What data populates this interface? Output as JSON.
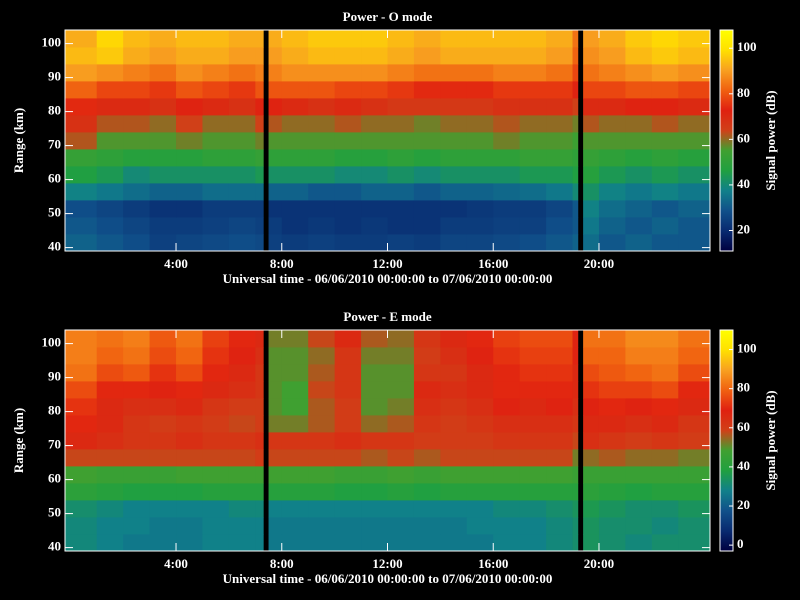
{
  "chart_data": [
    {
      "type": "heatmap",
      "title": "Power - O mode",
      "xlabel": "Universal time - 06/06/2010 00:00:00 to 07/06/2010 00:00:00",
      "ylabel": "Range (km)",
      "colorbar_label": "Signal power (dB)",
      "xbins": [
        -0.2,
        1,
        2,
        3,
        4,
        5,
        6,
        7,
        7.3,
        7.5,
        8,
        9,
        10,
        11,
        12,
        13,
        14,
        15,
        16,
        17,
        18,
        19,
        19.2,
        19.4,
        20,
        21,
        22,
        23,
        24.2
      ],
      "ybins": [
        39,
        44,
        49,
        54,
        59,
        64,
        69,
        74,
        79,
        84,
        89,
        94,
        99,
        104
      ],
      "xlim": [
        -0.2,
        24.2
      ],
      "ylim": [
        39,
        104
      ],
      "xticks": [
        {
          "value": 4,
          "label": "4:00"
        },
        {
          "value": 8,
          "label": "8:00"
        },
        {
          "value": 12,
          "label": "12:00"
        },
        {
          "value": 16,
          "label": "16:00"
        },
        {
          "value": 20,
          "label": "20:00"
        }
      ],
      "yticks": [
        40,
        50,
        60,
        70,
        80,
        90,
        100
      ],
      "clim": [
        11,
        108
      ],
      "cticks": [
        20,
        40,
        60,
        80,
        100
      ],
      "colormap": [
        "#000040",
        "#082a70",
        "#10508a",
        "#10808a",
        "#20a040",
        "#40a030",
        "#d04018",
        "#e02010",
        "#f06010",
        "#f8a020",
        "#ffe000",
        "#ffff00"
      ],
      "values": [
        [
          32,
          30,
          28,
          25,
          26,
          27,
          28,
          27,
          null,
          25,
          24,
          25,
          24,
          24,
          25,
          24,
          26,
          26,
          27,
          28,
          30,
          32,
          null,
          34,
          30,
          32,
          30,
          30
        ],
        [
          30,
          28,
          26,
          24,
          24,
          25,
          26,
          25,
          null,
          24,
          22,
          23,
          22,
          23,
          22,
          22,
          24,
          24,
          25,
          25,
          28,
          30,
          null,
          36,
          32,
          30,
          32,
          30
        ],
        [
          28,
          26,
          24,
          22,
          22,
          24,
          24,
          24,
          null,
          22,
          22,
          22,
          22,
          22,
          22,
          22,
          22,
          23,
          24,
          24,
          26,
          30,
          null,
          38,
          34,
          32,
          30,
          32
        ],
        [
          38,
          36,
          34,
          32,
          32,
          34,
          34,
          34,
          null,
          32,
          32,
          30,
          30,
          32,
          32,
          30,
          32,
          32,
          33,
          34,
          36,
          40,
          null,
          42,
          38,
          36,
          38,
          36
        ],
        [
          46,
          44,
          40,
          42,
          42,
          42,
          42,
          44,
          null,
          42,
          42,
          42,
          40,
          40,
          42,
          40,
          42,
          42,
          42,
          44,
          44,
          46,
          null,
          48,
          44,
          42,
          44,
          42
        ],
        [
          52,
          50,
          48,
          48,
          48,
          50,
          50,
          52,
          null,
          50,
          50,
          50,
          48,
          48,
          50,
          48,
          50,
          50,
          50,
          52,
          52,
          50,
          null,
          52,
          50,
          48,
          50,
          48
        ],
        [
          62,
          56,
          56,
          56,
          58,
          56,
          56,
          58,
          null,
          56,
          56,
          56,
          56,
          56,
          56,
          56,
          56,
          56,
          58,
          56,
          56,
          54,
          null,
          56,
          56,
          56,
          56,
          56
        ],
        [
          68,
          62,
          62,
          60,
          64,
          60,
          60,
          64,
          null,
          62,
          60,
          60,
          62,
          60,
          60,
          58,
          60,
          60,
          62,
          60,
          60,
          58,
          null,
          62,
          60,
          60,
          62,
          60
        ],
        [
          74,
          70,
          70,
          68,
          72,
          70,
          68,
          72,
          null,
          72,
          70,
          68,
          70,
          68,
          66,
          66,
          66,
          66,
          68,
          68,
          68,
          64,
          null,
          70,
          70,
          72,
          72,
          70
        ],
        [
          82,
          78,
          78,
          76,
          80,
          78,
          76,
          80,
          null,
          80,
          80,
          80,
          78,
          78,
          76,
          74,
          74,
          74,
          76,
          76,
          76,
          72,
          null,
          78,
          78,
          80,
          80,
          78
        ],
        [
          90,
          88,
          86,
          84,
          88,
          86,
          84,
          86,
          null,
          86,
          88,
          88,
          88,
          88,
          86,
          84,
          84,
          84,
          86,
          86,
          84,
          78,
          null,
          84,
          86,
          88,
          90,
          88
        ],
        [
          94,
          96,
          92,
          90,
          92,
          92,
          90,
          90,
          null,
          90,
          92,
          94,
          94,
          94,
          92,
          90,
          92,
          92,
          92,
          92,
          90,
          82,
          null,
          88,
          90,
          94,
          96,
          94
        ],
        [
          92,
          98,
          94,
          92,
          94,
          94,
          92,
          92,
          null,
          92,
          94,
          96,
          96,
          96,
          94,
          92,
          94,
          94,
          94,
          94,
          92,
          84,
          null,
          90,
          92,
          96,
          98,
          96
        ]
      ]
    },
    {
      "type": "heatmap",
      "title": "Power - E mode",
      "xlabel": "Universal time - 06/06/2010 00:00:00 to 07/06/2010 00:00:00",
      "ylabel": "Range (km)",
      "colorbar_label": "Signal power (dB)",
      "xbins": [
        -0.2,
        1,
        2,
        3,
        4,
        5,
        6,
        7,
        7.3,
        7.5,
        8,
        9,
        10,
        11,
        12,
        13,
        14,
        15,
        16,
        17,
        18,
        19,
        19.2,
        19.4,
        20,
        21,
        22,
        23,
        24.2
      ],
      "ybins": [
        39,
        44,
        49,
        54,
        59,
        64,
        69,
        74,
        79,
        84,
        89,
        94,
        99,
        104
      ],
      "xlim": [
        -0.2,
        24.2
      ],
      "ylim": [
        39,
        104
      ],
      "xticks": [
        {
          "value": 4,
          "label": "4:00"
        },
        {
          "value": 8,
          "label": "8:00"
        },
        {
          "value": 12,
          "label": "12:00"
        },
        {
          "value": 16,
          "label": "16:00"
        },
        {
          "value": 20,
          "label": "20:00"
        }
      ],
      "yticks": [
        40,
        50,
        60,
        70,
        80,
        90,
        100
      ],
      "clim": [
        -3,
        110
      ],
      "cticks": [
        0,
        20,
        40,
        60,
        80,
        100
      ],
      "colormap": [
        "#000040",
        "#082a70",
        "#10508a",
        "#10808a",
        "#20a040",
        "#40a030",
        "#d04018",
        "#e02010",
        "#f06010",
        "#f8a020",
        "#ffe000",
        "#ffff00"
      ],
      "values": [
        [
          30,
          28,
          26,
          26,
          26,
          28,
          28,
          28,
          null,
          26,
          26,
          26,
          26,
          26,
          26,
          26,
          26,
          26,
          28,
          28,
          30,
          32,
          null,
          34,
          32,
          30,
          32,
          32
        ],
        [
          30,
          28,
          28,
          26,
          26,
          28,
          28,
          28,
          null,
          26,
          26,
          26,
          26,
          26,
          26,
          26,
          26,
          28,
          28,
          28,
          30,
          32,
          null,
          34,
          32,
          32,
          30,
          32
        ],
        [
          32,
          30,
          28,
          28,
          28,
          28,
          30,
          30,
          null,
          28,
          28,
          28,
          28,
          28,
          28,
          28,
          28,
          28,
          30,
          30,
          32,
          34,
          null,
          36,
          34,
          32,
          32,
          34
        ],
        [
          42,
          40,
          38,
          38,
          38,
          40,
          40,
          40,
          null,
          40,
          40,
          40,
          38,
          38,
          40,
          38,
          40,
          40,
          40,
          40,
          40,
          40,
          null,
          42,
          40,
          38,
          40,
          40
        ],
        [
          48,
          46,
          46,
          46,
          48,
          48,
          48,
          48,
          null,
          48,
          48,
          48,
          46,
          46,
          48,
          46,
          48,
          48,
          48,
          48,
          48,
          46,
          null,
          46,
          46,
          46,
          46,
          46
        ],
        [
          58,
          58,
          58,
          58,
          58,
          58,
          58,
          60,
          null,
          58,
          58,
          58,
          58,
          56,
          58,
          56,
          58,
          58,
          58,
          58,
          58,
          52,
          null,
          54,
          56,
          54,
          54,
          52
        ],
        [
          66,
          64,
          62,
          62,
          64,
          62,
          62,
          64,
          null,
          62,
          62,
          62,
          64,
          62,
          62,
          60,
          60,
          60,
          62,
          62,
          62,
          58,
          null,
          64,
          62,
          60,
          62,
          60
        ],
        [
          70,
          66,
          62,
          60,
          62,
          60,
          58,
          60,
          null,
          52,
          52,
          56,
          60,
          54,
          56,
          62,
          60,
          62,
          64,
          64,
          64,
          62,
          null,
          66,
          66,
          64,
          66,
          62
        ],
        [
          72,
          66,
          64,
          64,
          66,
          62,
          60,
          60,
          null,
          50,
          48,
          56,
          60,
          50,
          52,
          64,
          62,
          64,
          68,
          66,
          68,
          64,
          null,
          68,
          70,
          68,
          70,
          66
        ],
        [
          76,
          70,
          70,
          68,
          70,
          66,
          64,
          62,
          null,
          50,
          48,
          58,
          62,
          50,
          50,
          66,
          64,
          66,
          70,
          70,
          70,
          66,
          null,
          72,
          74,
          74,
          76,
          70
        ],
        [
          82,
          76,
          78,
          72,
          76,
          70,
          66,
          62,
          null,
          50,
          50,
          56,
          62,
          50,
          50,
          62,
          62,
          66,
          70,
          72,
          72,
          66,
          null,
          76,
          78,
          80,
          82,
          76
        ],
        [
          84,
          80,
          82,
          76,
          80,
          72,
          68,
          64,
          null,
          50,
          50,
          54,
          62,
          52,
          52,
          60,
          64,
          68,
          72,
          74,
          74,
          68,
          null,
          80,
          80,
          84,
          84,
          80
        ],
        [
          84,
          82,
          84,
          78,
          82,
          74,
          70,
          66,
          null,
          52,
          52,
          58,
          66,
          56,
          54,
          62,
          66,
          70,
          74,
          76,
          76,
          68,
          null,
          82,
          82,
          86,
          86,
          82
        ]
      ]
    }
  ]
}
